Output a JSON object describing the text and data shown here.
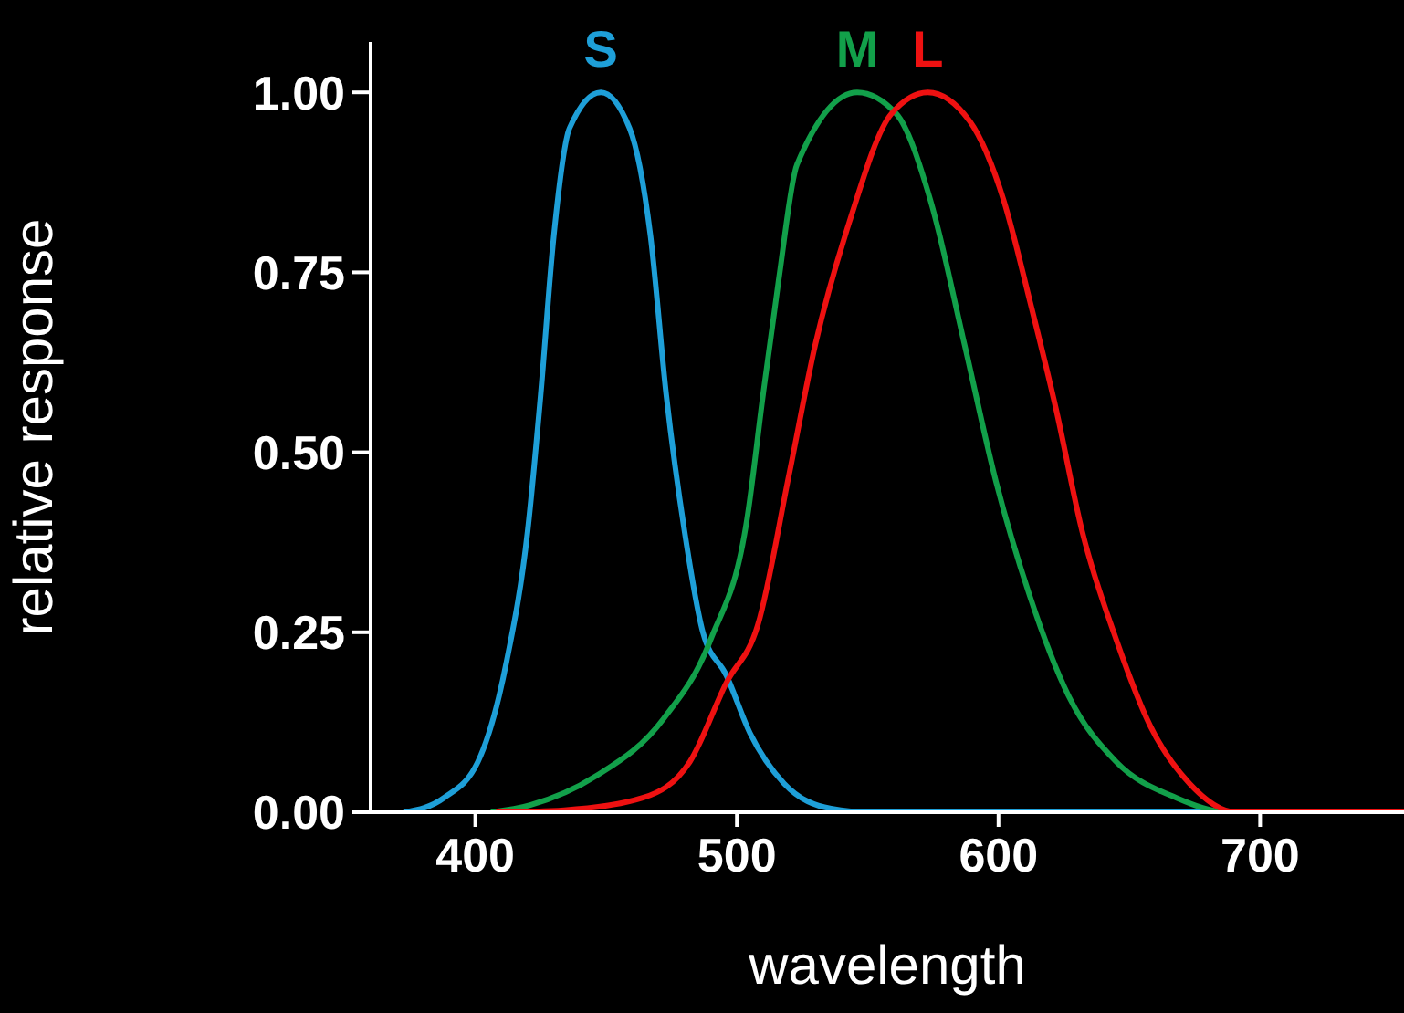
{
  "chart_data": {
    "type": "line",
    "xlabel": "wavelength",
    "ylabel": "relative response",
    "xlim": [
      360,
      755
    ],
    "ylim": [
      0,
      1.07
    ],
    "xticks": [
      400,
      500,
      600,
      700
    ],
    "yticks": [
      {
        "value": 0,
        "label": "0.00"
      },
      {
        "value": 0.25,
        "label": "0.25"
      },
      {
        "value": 0.5,
        "label": "0.50"
      },
      {
        "value": 0.75,
        "label": "0.75"
      },
      {
        "value": 1,
        "label": "1.00"
      }
    ],
    "series": [
      {
        "name": "S",
        "color": "#1e9fd8",
        "x": [
          373,
          388,
          401,
          412,
          420,
          425,
          430,
          436,
          448,
          459,
          467,
          473,
          480,
          487,
          496,
          505,
          518,
          536,
          551,
          755
        ],
        "values": [
          0,
          0.02,
          0.07,
          0.21,
          0.39,
          0.58,
          0.8,
          0.95,
          1,
          0.95,
          0.8,
          0.58,
          0.39,
          0.25,
          0.19,
          0.11,
          0.04,
          0.005,
          0,
          0
        ]
      },
      {
        "name": "M",
        "color": "#12a04a",
        "x": [
          406,
          421,
          446,
          472,
          490,
          504,
          510,
          516,
          523,
          546,
          561,
          574,
          587,
          599,
          612,
          627,
          645,
          668,
          688,
          755
        ],
        "values": [
          0,
          0.01,
          0.05,
          0.13,
          0.24,
          0.41,
          0.58,
          0.74,
          0.9,
          1,
          0.97,
          0.85,
          0.65,
          0.46,
          0.3,
          0.16,
          0.07,
          0.02,
          0,
          0
        ]
      },
      {
        "name": "L",
        "color": "#ee1111",
        "x": [
          408,
          434,
          464,
          482,
          496,
          508,
          520,
          530,
          543,
          559,
          573,
          589,
          602,
          612,
          622,
          632,
          645,
          658,
          673,
          691,
          755
        ],
        "values": [
          0,
          0.003,
          0.02,
          0.07,
          0.18,
          0.26,
          0.47,
          0.65,
          0.82,
          0.97,
          1,
          0.96,
          0.85,
          0.71,
          0.56,
          0.39,
          0.24,
          0.12,
          0.04,
          0,
          0
        ]
      }
    ]
  }
}
